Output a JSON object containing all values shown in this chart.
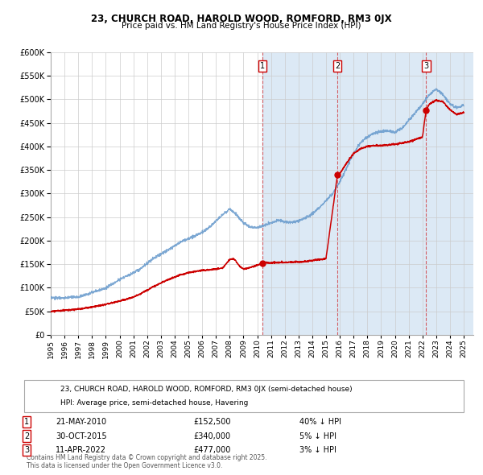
{
  "title": "23, CHURCH ROAD, HAROLD WOOD, ROMFORD, RM3 0JX",
  "subtitle": "Price paid vs. HM Land Registry's House Price Index (HPI)",
  "red_label": "23, CHURCH ROAD, HAROLD WOOD, ROMFORD, RM3 0JX (semi-detached house)",
  "blue_label": "HPI: Average price, semi-detached house, Havering",
  "footer": "Contains HM Land Registry data © Crown copyright and database right 2025.\nThis data is licensed under the Open Government Licence v3.0.",
  "transactions": [
    {
      "num": 1,
      "date": "21-MAY-2010",
      "price": 152500,
      "hpi_diff": "40% ↓ HPI",
      "year": 2010.38
    },
    {
      "num": 2,
      "date": "30-OCT-2015",
      "price": 340000,
      "hpi_diff": "5% ↓ HPI",
      "year": 2015.83
    },
    {
      "num": 3,
      "date": "11-APR-2022",
      "price": 477000,
      "hpi_diff": "3% ↓ HPI",
      "year": 2022.27
    }
  ],
  "ylim": [
    0,
    600000
  ],
  "ytick_step": 50000,
  "xmin": 1995.0,
  "xmax": 2025.7,
  "bg_color": "#dce9f5",
  "plot_bg": "#ffffff",
  "grid_color": "#cccccc",
  "red_color": "#cc0000",
  "blue_color": "#6699cc",
  "shade_start": 2010.38,
  "shade_end": 2025.7,
  "hpi_years": [
    1995.0,
    1995.5,
    1996.0,
    1996.5,
    1997.0,
    1997.5,
    1998.0,
    1998.5,
    1999.0,
    1999.5,
    2000.0,
    2000.5,
    2001.0,
    2001.5,
    2002.0,
    2002.5,
    2003.0,
    2003.5,
    2004.0,
    2004.5,
    2005.0,
    2005.5,
    2006.0,
    2006.5,
    2007.0,
    2007.5,
    2008.0,
    2008.5,
    2009.0,
    2009.5,
    2010.0,
    2010.5,
    2011.0,
    2011.5,
    2012.0,
    2012.5,
    2013.0,
    2013.5,
    2014.0,
    2014.5,
    2015.0,
    2015.5,
    2016.0,
    2016.5,
    2017.0,
    2017.5,
    2018.0,
    2018.5,
    2019.0,
    2019.5,
    2020.0,
    2020.5,
    2021.0,
    2021.5,
    2022.0,
    2022.5,
    2023.0,
    2023.5,
    2024.0,
    2024.5,
    2025.0
  ],
  "hpi_prices": [
    78000,
    78500,
    79000,
    79500,
    80000,
    85000,
    90000,
    95000,
    100000,
    108000,
    118000,
    125000,
    132000,
    140000,
    152000,
    163000,
    172000,
    180000,
    190000,
    198000,
    205000,
    210000,
    218000,
    228000,
    242000,
    255000,
    268000,
    255000,
    237000,
    228000,
    228000,
    232000,
    238000,
    243000,
    240000,
    238000,
    242000,
    248000,
    257000,
    270000,
    285000,
    300000,
    325000,
    355000,
    385000,
    408000,
    420000,
    428000,
    432000,
    433000,
    430000,
    438000,
    455000,
    472000,
    490000,
    510000,
    522000,
    510000,
    490000,
    482000,
    488000
  ],
  "red_years": [
    1995.0,
    1995.5,
    1996.0,
    1996.5,
    1997.0,
    1997.5,
    1998.0,
    1998.5,
    1999.0,
    1999.5,
    2000.0,
    2000.5,
    2001.0,
    2001.5,
    2002.0,
    2002.5,
    2003.0,
    2003.5,
    2004.0,
    2004.5,
    2005.0,
    2005.5,
    2006.0,
    2006.5,
    2007.0,
    2007.5,
    2008.0,
    2008.25,
    2008.5,
    2008.75,
    2009.0,
    2009.5,
    2010.0,
    2010.38,
    2010.5,
    2011.0,
    2011.5,
    2012.0,
    2012.5,
    2013.0,
    2013.5,
    2014.0,
    2014.5,
    2015.0,
    2015.83,
    2016.0,
    2016.5,
    2017.0,
    2017.5,
    2018.0,
    2018.5,
    2019.0,
    2019.5,
    2020.0,
    2020.5,
    2021.0,
    2021.5,
    2022.0,
    2022.27,
    2022.5,
    2023.0,
    2023.5,
    2024.0,
    2024.5,
    2025.0
  ],
  "red_prices": [
    50000,
    51000,
    52000,
    53000,
    55000,
    57000,
    59000,
    62000,
    65000,
    68000,
    72000,
    76000,
    80000,
    87000,
    95000,
    103000,
    110000,
    117000,
    123000,
    128000,
    132000,
    135000,
    137000,
    138000,
    140000,
    142000,
    160000,
    162000,
    155000,
    145000,
    140000,
    143000,
    148000,
    152500,
    153000,
    153000,
    153500,
    154000,
    154500,
    155000,
    155500,
    158000,
    160000,
    162000,
    340000,
    342000,
    365000,
    385000,
    395000,
    400000,
    402000,
    402000,
    403000,
    405000,
    407000,
    410000,
    415000,
    420000,
    477000,
    490000,
    498000,
    495000,
    478000,
    468000,
    472000
  ]
}
